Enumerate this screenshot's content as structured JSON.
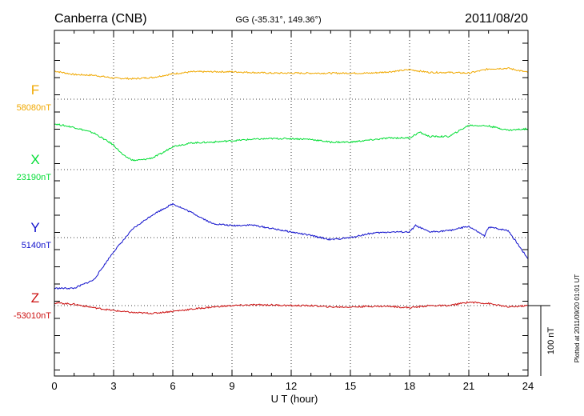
{
  "chart_data": {
    "type": "line",
    "station": "Canberra (CNB)",
    "coords": "GG (-35.31°, 149.36°)",
    "date": "2011/08/20",
    "xlabel": "U T (hour)",
    "xlim": [
      0,
      24
    ],
    "x_ticks": [
      "0",
      "3",
      "6",
      "9",
      "12",
      "15",
      "18",
      "21",
      "24"
    ],
    "scale_label": "100 nT",
    "plotted_note": "Plotted at 2011/09/20 01:01 UT",
    "grid": true,
    "series": [
      {
        "name": "F",
        "baseline_label": "58080nT",
        "color": "#f0a800",
        "x": [
          0,
          1,
          2,
          3,
          4,
          5,
          6,
          7,
          8,
          9,
          10,
          11,
          12,
          13,
          14,
          15,
          16,
          17,
          18,
          19,
          20,
          21,
          22,
          23,
          24
        ],
        "y": [
          40,
          35,
          34,
          30,
          29,
          31,
          36,
          39,
          39,
          39,
          38,
          37,
          37,
          37,
          37,
          37,
          37,
          39,
          42,
          38,
          38,
          37,
          43,
          44,
          38
        ]
      },
      {
        "name": "X",
        "baseline_label": "23190nT",
        "color": "#00dd33",
        "x": [
          0,
          1,
          2,
          3,
          3.5,
          4,
          4.5,
          5,
          5.5,
          6,
          7,
          8,
          9,
          10,
          11,
          12,
          13,
          14,
          15,
          16,
          17,
          18,
          18.5,
          19,
          20,
          21,
          22,
          23,
          24
        ],
        "y": [
          65,
          60,
          52,
          35,
          20,
          13,
          14,
          17,
          24,
          33,
          38,
          39,
          41,
          43,
          44,
          44,
          43,
          39,
          39,
          42,
          45,
          45,
          53,
          47,
          47,
          63,
          62,
          56,
          58
        ]
      },
      {
        "name": "Y",
        "baseline_label": "5140nT",
        "color": "#1010cc",
        "x": [
          0,
          1,
          2,
          3,
          4,
          5,
          6,
          7,
          8,
          9,
          10,
          11,
          12,
          13,
          14,
          15,
          16,
          17,
          18,
          18.3,
          19,
          20,
          21,
          21.8,
          22,
          23,
          24
        ],
        "y": [
          -72,
          -72,
          -60,
          -20,
          13,
          33,
          48,
          35,
          20,
          17,
          18,
          13,
          8,
          3,
          -3,
          0,
          6,
          8,
          8,
          17,
          8,
          10,
          16,
          2,
          15,
          10,
          -30
        ]
      },
      {
        "name": "Z",
        "baseline_label": "-53010nT",
        "color": "#cc1010",
        "x": [
          0,
          1,
          2,
          3,
          4,
          5,
          6,
          7,
          8,
          9,
          10,
          11,
          12,
          13,
          14,
          15,
          16,
          17,
          18,
          19,
          20,
          21,
          22,
          23,
          24
        ],
        "y": [
          4,
          2,
          -3,
          -7,
          -10,
          -11,
          -8,
          -5,
          -2,
          0,
          1,
          1,
          0,
          0,
          -2,
          -2,
          -1,
          -1,
          -3,
          0,
          0,
          5,
          3,
          -2,
          0
        ]
      }
    ]
  }
}
